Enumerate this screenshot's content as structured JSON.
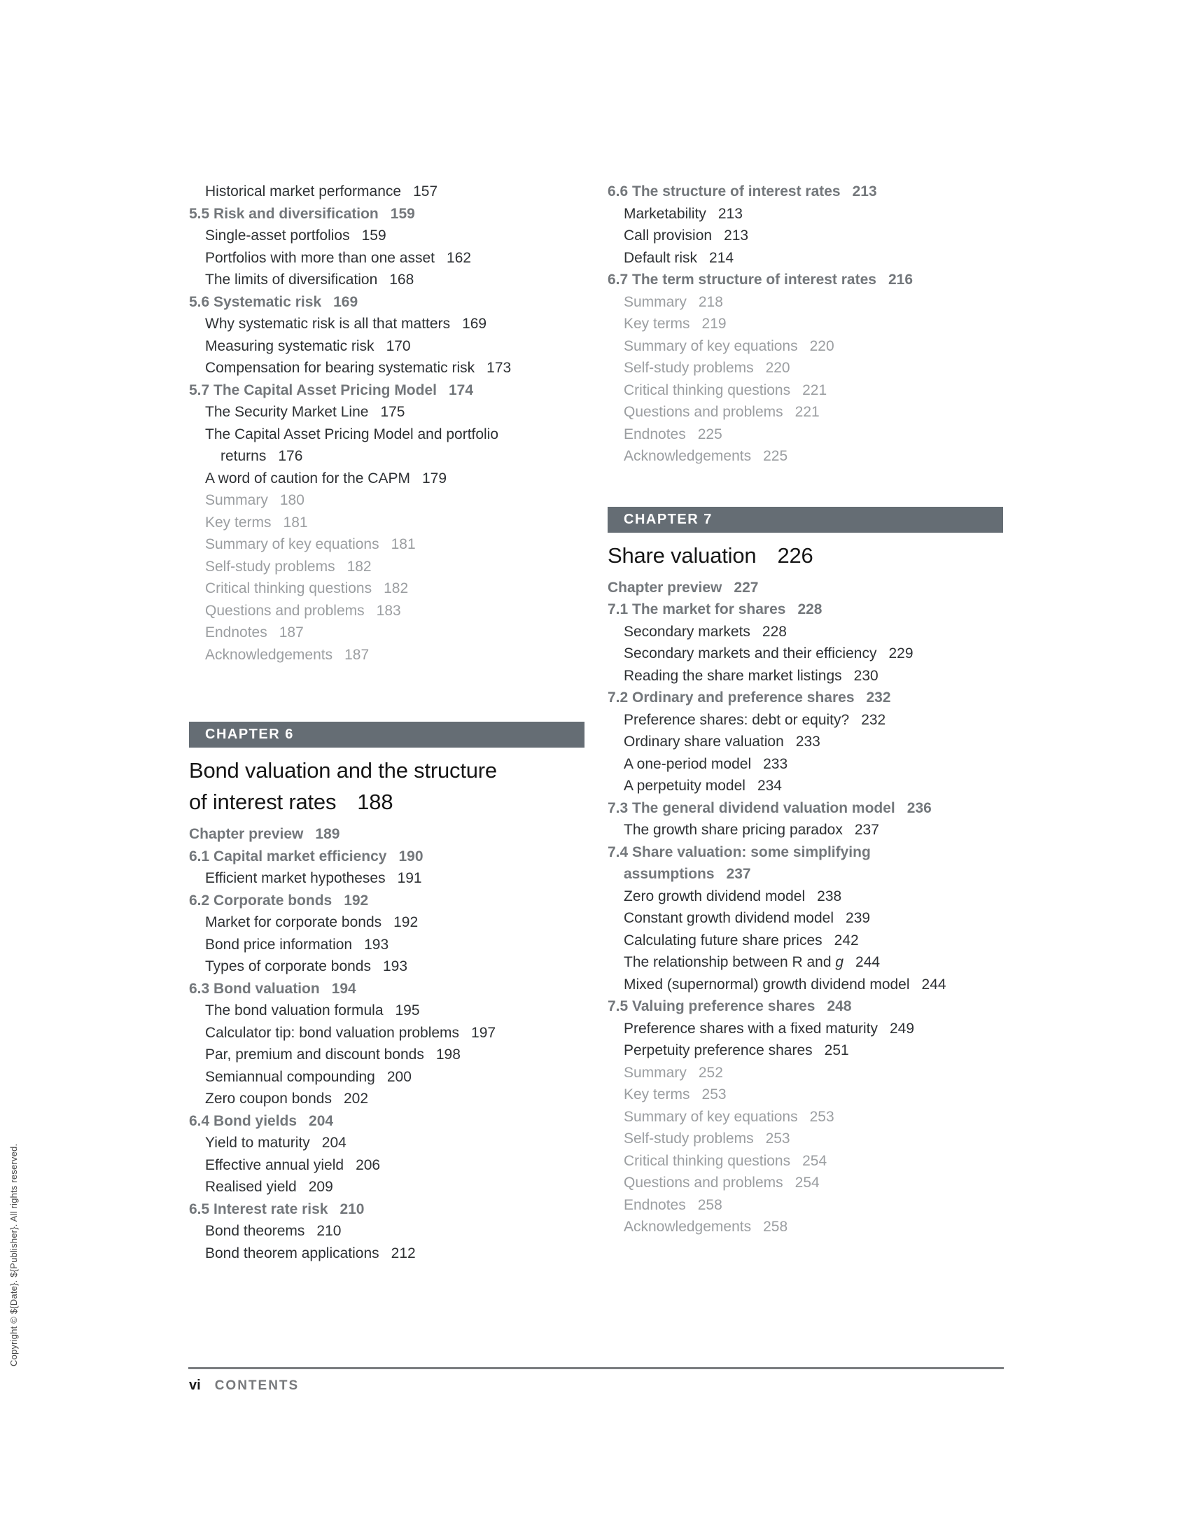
{
  "sidebar_copyright": "Copyright © ${Date}. ${Publisher}. All rights reserved.",
  "footer": {
    "page_number": "vi",
    "label": "CONTENTS"
  },
  "columns": {
    "left": [
      {
        "kind": "entry",
        "type": "sub",
        "label": "Historical market performance",
        "page": "157"
      },
      {
        "kind": "entry",
        "type": "section",
        "label": "5.5 Risk and diversification",
        "page": "159"
      },
      {
        "kind": "entry",
        "type": "sub",
        "label": "Single-asset portfolios",
        "page": "159"
      },
      {
        "kind": "entry",
        "type": "sub",
        "label": "Portfolios with more than one asset",
        "page": "162"
      },
      {
        "kind": "entry",
        "type": "sub",
        "label": "The limits of diversification",
        "page": "168"
      },
      {
        "kind": "entry",
        "type": "section",
        "label": "5.6 Systematic risk",
        "page": "169"
      },
      {
        "kind": "entry",
        "type": "sub",
        "label": "Why systematic risk is all that matters",
        "page": "169"
      },
      {
        "kind": "entry",
        "type": "sub",
        "label": "Measuring systematic risk",
        "page": "170"
      },
      {
        "kind": "entry",
        "type": "sub",
        "label": "Compensation for bearing systematic risk",
        "page": "173"
      },
      {
        "kind": "entry",
        "type": "section",
        "label": "5.7 The Capital Asset Pricing Model",
        "page": "174"
      },
      {
        "kind": "entry",
        "type": "sub",
        "label": "The Security Market Line",
        "page": "175"
      },
      {
        "kind": "entry",
        "type": "sub",
        "lines": [
          "The Capital Asset Pricing Model and portfolio",
          "returns"
        ],
        "page": "176"
      },
      {
        "kind": "entry",
        "type": "sub",
        "label": "A word of caution for the CAPM",
        "page": "179"
      },
      {
        "kind": "entry",
        "type": "end",
        "label": "Summary",
        "page": "180"
      },
      {
        "kind": "entry",
        "type": "end",
        "label": "Key terms",
        "page": "181"
      },
      {
        "kind": "entry",
        "type": "end",
        "label": "Summary of key equations",
        "page": "181"
      },
      {
        "kind": "entry",
        "type": "end",
        "label": "Self-study problems",
        "page": "182"
      },
      {
        "kind": "entry",
        "type": "end",
        "label": "Critical thinking questions",
        "page": "182"
      },
      {
        "kind": "entry",
        "type": "end",
        "label": "Questions and problems",
        "page": "183"
      },
      {
        "kind": "entry",
        "type": "end",
        "label": "Endnotes",
        "page": "187"
      },
      {
        "kind": "entry",
        "type": "end",
        "label": "Acknowledgements",
        "page": "187"
      },
      {
        "kind": "chapter",
        "bar": "CHAPTER 6",
        "title_lines": [
          "Bond valuation and the structure",
          "of interest rates"
        ],
        "page": "188"
      },
      {
        "kind": "entry",
        "type": "section",
        "label": "Chapter preview",
        "page": "189"
      },
      {
        "kind": "entry",
        "type": "section",
        "label": "6.1 Capital market efficiency",
        "page": "190"
      },
      {
        "kind": "entry",
        "type": "sub",
        "label": "Efficient market hypotheses",
        "page": "191"
      },
      {
        "kind": "entry",
        "type": "section",
        "label": "6.2 Corporate bonds",
        "page": "192"
      },
      {
        "kind": "entry",
        "type": "sub",
        "label": "Market for corporate bonds",
        "page": "192"
      },
      {
        "kind": "entry",
        "type": "sub",
        "label": "Bond price information",
        "page": "193"
      },
      {
        "kind": "entry",
        "type": "sub",
        "label": "Types of corporate bonds",
        "page": "193"
      },
      {
        "kind": "entry",
        "type": "section",
        "label": "6.3 Bond valuation",
        "page": "194"
      },
      {
        "kind": "entry",
        "type": "sub",
        "label": "The bond valuation formula",
        "page": "195"
      },
      {
        "kind": "entry",
        "type": "sub",
        "label": "Calculator tip: bond valuation problems",
        "page": "197"
      },
      {
        "kind": "entry",
        "type": "sub",
        "label": "Par, premium and discount bonds",
        "page": "198"
      },
      {
        "kind": "entry",
        "type": "sub",
        "label": "Semiannual compounding",
        "page": "200"
      },
      {
        "kind": "entry",
        "type": "sub",
        "label": "Zero coupon bonds",
        "page": "202"
      },
      {
        "kind": "entry",
        "type": "section",
        "label": "6.4 Bond yields",
        "page": "204"
      },
      {
        "kind": "entry",
        "type": "sub",
        "label": "Yield to maturity",
        "page": "204"
      },
      {
        "kind": "entry",
        "type": "sub",
        "label": "Effective annual yield",
        "page": "206"
      },
      {
        "kind": "entry",
        "type": "sub",
        "label": "Realised yield",
        "page": "209"
      },
      {
        "kind": "entry",
        "type": "section",
        "label": "6.5 Interest rate risk",
        "page": "210"
      },
      {
        "kind": "entry",
        "type": "sub",
        "label": "Bond theorems",
        "page": "210"
      },
      {
        "kind": "entry",
        "type": "sub",
        "label": "Bond theorem applications",
        "page": "212"
      }
    ],
    "right": [
      {
        "kind": "entry",
        "type": "section",
        "label": "6.6 The structure of interest rates",
        "page": "213"
      },
      {
        "kind": "entry",
        "type": "sub",
        "label": "Marketability",
        "page": "213"
      },
      {
        "kind": "entry",
        "type": "sub",
        "label": "Call provision",
        "page": "213"
      },
      {
        "kind": "entry",
        "type": "sub",
        "label": "Default risk",
        "page": "214"
      },
      {
        "kind": "entry",
        "type": "section",
        "label": "6.7 The term structure of interest rates",
        "page": "216"
      },
      {
        "kind": "entry",
        "type": "end",
        "label": "Summary",
        "page": "218"
      },
      {
        "kind": "entry",
        "type": "end",
        "label": "Key terms",
        "page": "219"
      },
      {
        "kind": "entry",
        "type": "end",
        "label": "Summary of key equations",
        "page": "220"
      },
      {
        "kind": "entry",
        "type": "end",
        "label": "Self-study problems",
        "page": "220"
      },
      {
        "kind": "entry",
        "type": "end",
        "label": "Critical thinking questions",
        "page": "221"
      },
      {
        "kind": "entry",
        "type": "end",
        "label": "Questions and problems",
        "page": "221"
      },
      {
        "kind": "entry",
        "type": "end",
        "label": "Endnotes",
        "page": "225"
      },
      {
        "kind": "entry",
        "type": "end",
        "label": "Acknowledgements",
        "page": "225"
      },
      {
        "kind": "chapter",
        "bar": "CHAPTER 7",
        "title_lines": [
          "Share valuation"
        ],
        "page": "226"
      },
      {
        "kind": "entry",
        "type": "section",
        "label": "Chapter preview",
        "page": "227"
      },
      {
        "kind": "entry",
        "type": "section",
        "label": "7.1 The market for shares",
        "page": "228"
      },
      {
        "kind": "entry",
        "type": "sub",
        "label": "Secondary markets",
        "page": "228"
      },
      {
        "kind": "entry",
        "type": "sub",
        "label": "Secondary markets and their efficiency",
        "page": "229"
      },
      {
        "kind": "entry",
        "type": "sub",
        "label": "Reading the share market listings",
        "page": "230"
      },
      {
        "kind": "entry",
        "type": "section",
        "label": "7.2 Ordinary and preference shares",
        "page": "232"
      },
      {
        "kind": "entry",
        "type": "sub",
        "label": "Preference shares: debt or equity?",
        "page": "232"
      },
      {
        "kind": "entry",
        "type": "sub",
        "label": "Ordinary share valuation",
        "page": "233"
      },
      {
        "kind": "entry",
        "type": "sub",
        "label": "A one-period model",
        "page": "233"
      },
      {
        "kind": "entry",
        "type": "sub",
        "label": "A perpetuity model",
        "page": "234"
      },
      {
        "kind": "entry",
        "type": "section",
        "label": "7.3 The general dividend valuation model",
        "page": "236"
      },
      {
        "kind": "entry",
        "type": "sub",
        "label": "The growth share pricing paradox",
        "page": "237"
      },
      {
        "kind": "entry",
        "type": "section",
        "lines": [
          "7.4 Share valuation: some simplifying",
          "assumptions"
        ],
        "page": "237"
      },
      {
        "kind": "entry",
        "type": "sub",
        "label": "Zero growth dividend model",
        "page": "238"
      },
      {
        "kind": "entry",
        "type": "sub",
        "label": "Constant growth dividend model",
        "page": "239"
      },
      {
        "kind": "entry",
        "type": "sub",
        "label": "Calculating future share prices",
        "page": "242"
      },
      {
        "kind": "entry",
        "type": "sub",
        "label": "The relationship between R and",
        "italic_tail": "g",
        "page": "244"
      },
      {
        "kind": "entry",
        "type": "sub",
        "label": "Mixed (supernormal) growth dividend model",
        "page": "244"
      },
      {
        "kind": "entry",
        "type": "section",
        "label": "7.5 Valuing preference shares",
        "page": "248"
      },
      {
        "kind": "entry",
        "type": "sub",
        "label": "Preference shares with a fixed maturity",
        "page": "249"
      },
      {
        "kind": "entry",
        "type": "sub",
        "label": "Perpetuity preference shares",
        "page": "251"
      },
      {
        "kind": "entry",
        "type": "end",
        "label": "Summary",
        "page": "252"
      },
      {
        "kind": "entry",
        "type": "end",
        "label": "Key terms",
        "page": "253"
      },
      {
        "kind": "entry",
        "type": "end",
        "label": "Summary of key equations",
        "page": "253"
      },
      {
        "kind": "entry",
        "type": "end",
        "label": "Self-study problems",
        "page": "253"
      },
      {
        "kind": "entry",
        "type": "end",
        "label": "Critical thinking questions",
        "page": "254"
      },
      {
        "kind": "entry",
        "type": "end",
        "label": "Questions and problems",
        "page": "254"
      },
      {
        "kind": "entry",
        "type": "end",
        "label": "Endnotes",
        "page": "258"
      },
      {
        "kind": "entry",
        "type": "end",
        "label": "Acknowledgements",
        "page": "258"
      }
    ]
  }
}
